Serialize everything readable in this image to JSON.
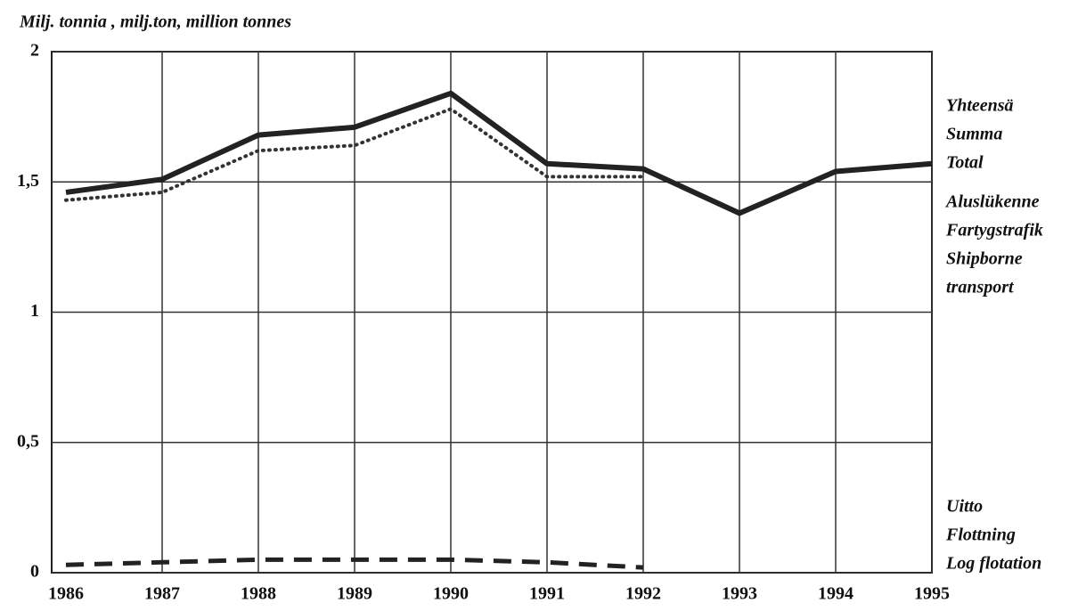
{
  "chart_data": {
    "type": "line",
    "title": "Milj. tonnia , milj.ton, million tonnes",
    "categories": [
      "1986",
      "1987",
      "1988",
      "1989",
      "1990",
      "1991",
      "1992",
      "1993",
      "1994",
      "1995"
    ],
    "series": [
      {
        "name": [
          "Yhteensä",
          "Summa",
          "Total"
        ],
        "color": "#222222",
        "style": "solid",
        "values": [
          1.46,
          1.51,
          1.68,
          1.71,
          1.84,
          1.57,
          1.55,
          1.38,
          1.54,
          1.57
        ]
      },
      {
        "name": [
          "Aluslükenne",
          "Fartygstrafik",
          "Shipborne",
          "transport"
        ],
        "color": "#333333",
        "style": "dotted",
        "values": [
          1.43,
          1.46,
          1.62,
          1.64,
          1.78,
          1.52,
          1.52,
          null,
          null,
          null
        ]
      },
      {
        "name": [
          "Uitto",
          "Flottning",
          "Log flotation"
        ],
        "color": "#222222",
        "style": "dashed",
        "values": [
          0.03,
          0.04,
          0.05,
          0.05,
          0.05,
          0.04,
          0.02,
          null,
          null,
          null
        ]
      }
    ],
    "ylim": [
      0,
      2
    ],
    "yticks": [
      0,
      {
        "value": 0.5,
        "label": "0,5"
      },
      1,
      {
        "value": 1.5,
        "label": "1,5"
      },
      2
    ],
    "grid": true
  }
}
